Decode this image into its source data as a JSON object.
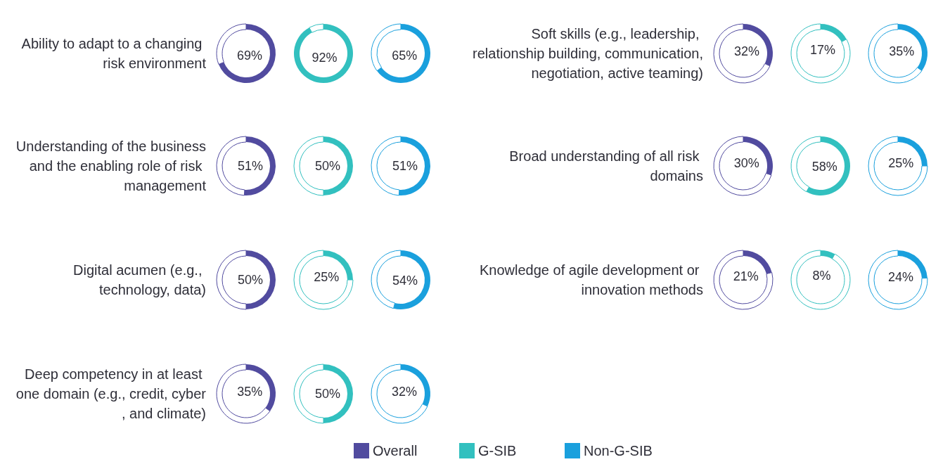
{
  "chart_data": [
    {
      "type": "donut",
      "title": "Ability to adapt to a changing risk environment",
      "categories": [
        null,
        null
      ],
      "values": [
        69,
        31
      ],
      "colors": [
        "#514b9f",
        "#ffffff"
      ],
      "value_labels": [
        "69%",
        null
      ]
    },
    {
      "type": "donut",
      "categories": [
        null,
        null
      ],
      "values": [
        92,
        8
      ],
      "colors": [
        "#32c0bf",
        "#ffffff"
      ],
      "value_labels": [
        "92%",
        null
      ]
    },
    {
      "type": "donut",
      "categories": [
        null,
        null
      ],
      "values": [
        65,
        35
      ],
      "colors": [
        "#1aa0dd",
        "#ffffff"
      ],
      "value_labels": [
        "65%",
        null
      ]
    },
    {
      "type": "donut",
      "title": "Understanding of the business and the enabling role of risk management",
      "categories": [
        null,
        null
      ],
      "values": [
        51,
        49
      ],
      "colors": [
        "#514b9f",
        "#ffffff"
      ],
      "value_labels": [
        "51%",
        null
      ]
    },
    {
      "type": "donut",
      "categories": [
        null,
        null
      ],
      "values": [
        50,
        50
      ],
      "colors": [
        "#32c0bf",
        "#ffffff"
      ],
      "value_labels": [
        "50%",
        null
      ]
    },
    {
      "type": "donut",
      "categories": [
        null,
        null
      ],
      "values": [
        51,
        49
      ],
      "colors": [
        "#1aa0dd",
        "#ffffff"
      ],
      "value_labels": [
        "51%",
        null
      ]
    },
    {
      "type": "donut",
      "title": "Digital acumen (e.g., technology, data)",
      "categories": [
        null,
        null
      ],
      "values": [
        50,
        50
      ],
      "colors": [
        "#514b9f",
        "#ffffff"
      ],
      "value_labels": [
        "50%",
        null
      ]
    },
    {
      "type": "donut",
      "categories": [
        null,
        null
      ],
      "values": [
        25,
        75
      ],
      "colors": [
        "#32c0bf",
        "#ffffff"
      ],
      "value_labels": [
        "25%",
        null
      ]
    },
    {
      "type": "donut",
      "categories": [
        null,
        null
      ],
      "values": [
        54,
        46
      ],
      "colors": [
        "#1aa0dd",
        "#ffffff"
      ],
      "value_labels": [
        "54%",
        null
      ]
    },
    {
      "type": "donut",
      "title": "Deep competency in at least one domain (e.g., credit, cyber, and climate)",
      "categories": [
        "Overall",
        null
      ],
      "values": [
        35,
        65
      ],
      "colors": [
        "#514b9f",
        "#ffffff"
      ],
      "value_labels": [
        "35%",
        null
      ],
      "legend": "bottom"
    },
    {
      "type": "donut",
      "categories": [
        "G-SIB",
        null
      ],
      "values": [
        50,
        50
      ],
      "colors": [
        "#32c0bf",
        "#ffffff"
      ],
      "value_labels": [
        "50%",
        null
      ],
      "legend": "bottom"
    },
    {
      "type": "donut",
      "categories": [
        "Non-G-SIB",
        null
      ],
      "values": [
        32,
        68
      ],
      "colors": [
        "#1aa0dd",
        "#ffffff"
      ],
      "value_labels": [
        "32%",
        null
      ],
      "legend": "bottom"
    },
    {
      "type": "donut",
      "title": "Soft skills (e.g., leadership, relationship building, communication, negotiation, active teaming)",
      "categories": [
        null,
        null
      ],
      "values": [
        32,
        68
      ],
      "colors": [
        "#514b9f",
        "#ffffff"
      ],
      "value_labels": [
        "32%",
        null
      ]
    },
    {
      "type": "donut",
      "categories": [
        null,
        null
      ],
      "values": [
        17,
        83
      ],
      "colors": [
        "#32c0bf",
        "#ffffff"
      ],
      "value_labels": [
        "17%",
        null
      ]
    },
    {
      "type": "donut",
      "categories": [
        null,
        null
      ],
      "values": [
        35,
        65
      ],
      "colors": [
        "#1aa0dd",
        "#ffffff"
      ],
      "value_labels": [
        "35%",
        null
      ]
    },
    {
      "type": "donut",
      "title": "Broad understanding of all risk domains",
      "categories": [
        null,
        null
      ],
      "values": [
        30,
        70
      ],
      "colors": [
        "#514b9f",
        "#ffffff"
      ],
      "value_labels": [
        "30%",
        null
      ]
    },
    {
      "type": "donut",
      "categories": [
        null,
        null
      ],
      "values": [
        58,
        42
      ],
      "colors": [
        "#32c0bf",
        "#ffffff"
      ],
      "value_labels": [
        "58%",
        null
      ]
    },
    {
      "type": "donut",
      "categories": [
        null,
        null
      ],
      "values": [
        25,
        75
      ],
      "colors": [
        "#1aa0dd",
        "#ffffff"
      ],
      "value_labels": [
        "25%",
        null
      ]
    },
    {
      "type": "donut",
      "title": "Knowledge of agile development or innovation methods",
      "categories": [
        null,
        null
      ],
      "values": [
        21,
        79
      ],
      "colors": [
        "#514b9f",
        "#ffffff"
      ],
      "value_labels": [
        "21%",
        null
      ]
    },
    {
      "type": "donut",
      "categories": [
        null,
        null
      ],
      "values": [
        8,
        92
      ],
      "colors": [
        "#32c0bf",
        "#ffffff"
      ],
      "value_labels": [
        "8%",
        null
      ]
    },
    {
      "type": "donut",
      "categories": [
        null,
        null
      ],
      "values": [
        24,
        76
      ],
      "colors": [
        "#1aa0dd",
        "#ffffff"
      ],
      "value_labels": [
        "24%",
        null
      ]
    }
  ]
}
